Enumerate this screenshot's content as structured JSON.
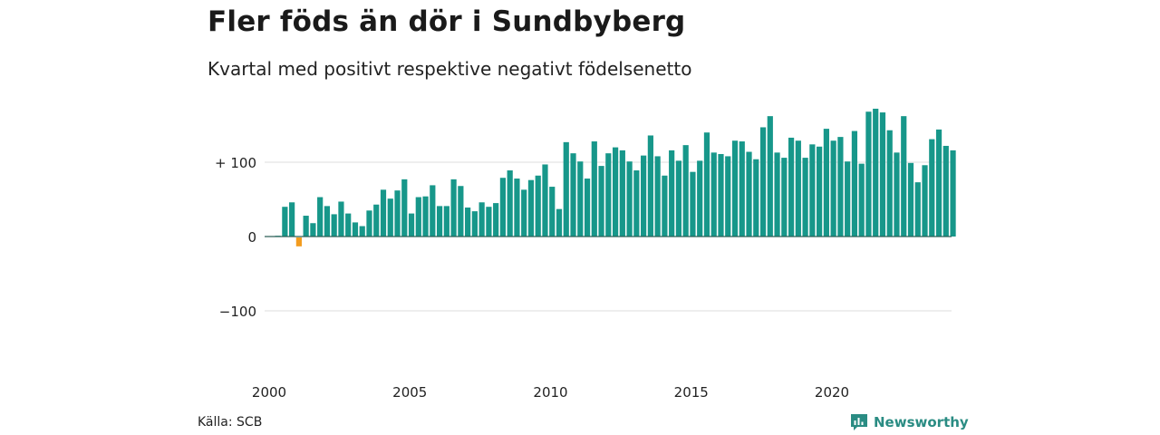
{
  "title": "Fler föds än dör i Sundbyberg",
  "subtitle": "Kvartal med positivt respektive negativt födelsenetto",
  "source": "Källa: SCB",
  "brand": "Newsworthy",
  "colors": {
    "positive": "#17978a",
    "negative": "#f39c1f",
    "grid": "#dddddd",
    "brand": "#2a8c83"
  },
  "chart_data": {
    "type": "bar",
    "title": "Fler föds än dör i Sundbyberg",
    "subtitle": "Kvartal med positivt respektive negativt födelsenetto",
    "xlabel": "",
    "ylabel": "",
    "ylim": [
      -160,
      200
    ],
    "yticks": [
      {
        "value": 100,
        "label": "+ 100"
      },
      {
        "value": 0,
        "label": "0"
      },
      {
        "value": -100,
        "label": "−100"
      }
    ],
    "xticks": [
      {
        "value": 2000,
        "label": "2000"
      },
      {
        "value": 2005,
        "label": "2005"
      },
      {
        "value": 2010,
        "label": "2010"
      },
      {
        "value": 2015,
        "label": "2015"
      },
      {
        "value": 2020,
        "label": "2020"
      }
    ],
    "grid": true,
    "start_year": 2000,
    "values": [
      1,
      40,
      46,
      -12,
      28,
      18,
      53,
      41,
      30,
      47,
      31,
      19,
      14,
      35,
      43,
      63,
      51,
      62,
      77,
      31,
      53,
      54,
      69,
      41,
      41,
      77,
      68,
      39,
      34,
      46,
      40,
      45,
      79,
      89,
      78,
      63,
      76,
      82,
      97,
      67,
      37,
      127,
      112,
      101,
      78,
      128,
      95,
      112,
      120,
      116,
      101,
      89,
      109,
      136,
      108,
      82,
      116,
      102,
      123,
      87,
      102,
      140,
      113,
      111,
      108,
      129,
      128,
      114,
      104,
      147,
      162,
      113,
      106,
      133,
      129,
      106,
      124,
      121,
      145,
      129,
      134,
      101,
      142,
      98,
      168,
      172,
      167,
      143,
      113,
      162,
      99,
      73,
      96,
      131,
      144,
      122,
      116
    ]
  }
}
